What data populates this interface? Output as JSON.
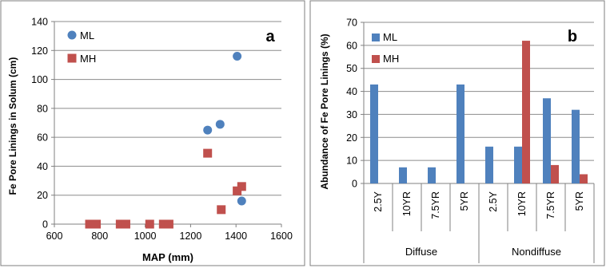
{
  "colors": {
    "ml": "#4F81BD",
    "mh": "#C0504D",
    "grid": "#8C8C8C",
    "frame": "#7F7F7F"
  },
  "chart_data": [
    {
      "type": "scatter",
      "panel_label": "a",
      "xlabel": "MAP (mm)",
      "ylabel": "Fe Pore Linings in Solum (cm)",
      "xlim": [
        600,
        1600
      ],
      "ylim": [
        0,
        140
      ],
      "xticks": [
        "600",
        "800",
        "1000",
        "1200",
        "1400",
        "1600"
      ],
      "yticks": [
        "0",
        "20",
        "40",
        "60",
        "80",
        "100",
        "120",
        "140"
      ],
      "grid": "horizontal",
      "legend": "top-left",
      "series": [
        {
          "name": "ML",
          "marker": "circle",
          "color": "#4F81BD",
          "points": [
            [
              1275,
              65
            ],
            [
              1330,
              69
            ],
            [
              1405,
              116
            ],
            [
              1425,
              16
            ]
          ]
        },
        {
          "name": "MH",
          "marker": "square",
          "color": "#C0504D",
          "points": [
            [
              755,
              0
            ],
            [
              785,
              0
            ],
            [
              890,
              0
            ],
            [
              915,
              0
            ],
            [
              1020,
              0
            ],
            [
              1080,
              0
            ],
            [
              1105,
              0
            ],
            [
              1275,
              49
            ],
            [
              1335,
              10
            ],
            [
              1405,
              23
            ],
            [
              1425,
              26
            ]
          ]
        }
      ]
    },
    {
      "type": "bar",
      "panel_label": "b",
      "xlabel": "",
      "ylabel": "Abundance of Fe Pore Linings (%)",
      "ylim": [
        0,
        70
      ],
      "yticks": [
        "0",
        "10",
        "20",
        "30",
        "40",
        "50",
        "60",
        "70"
      ],
      "grid": "horizontal",
      "legend": "top-left",
      "categories": [
        "2.5Y",
        "10YR",
        "7.5YR",
        "5YR",
        "2.5Y",
        "10YR",
        "7.5YR",
        "5YR"
      ],
      "groups": [
        {
          "label": "Diffuse",
          "span": 4
        },
        {
          "label": "Nondiffuse",
          "span": 4
        }
      ],
      "series": [
        {
          "name": "ML",
          "color": "#4F81BD",
          "values": [
            43,
            7,
            7,
            43,
            16,
            16,
            37,
            32
          ]
        },
        {
          "name": "MH",
          "color": "#C0504D",
          "values": [
            0,
            0,
            0,
            0,
            0,
            62,
            8,
            4
          ]
        }
      ]
    }
  ]
}
